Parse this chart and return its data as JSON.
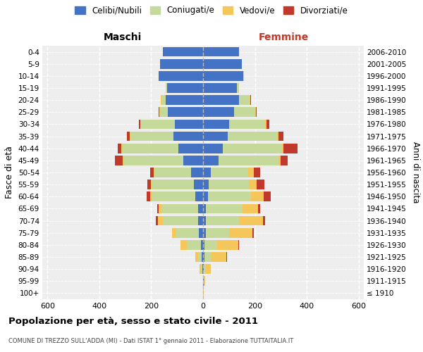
{
  "age_groups": [
    "100+",
    "95-99",
    "90-94",
    "85-89",
    "80-84",
    "75-79",
    "70-74",
    "65-69",
    "60-64",
    "55-59",
    "50-54",
    "45-49",
    "40-44",
    "35-39",
    "30-34",
    "25-29",
    "20-24",
    "15-19",
    "10-14",
    "5-9",
    "0-4"
  ],
  "birth_years": [
    "≤ 1910",
    "1911-1915",
    "1916-1920",
    "1921-1925",
    "1926-1930",
    "1931-1935",
    "1936-1940",
    "1941-1945",
    "1946-1950",
    "1951-1955",
    "1956-1960",
    "1961-1965",
    "1966-1970",
    "1971-1975",
    "1976-1980",
    "1981-1985",
    "1986-1990",
    "1991-1995",
    "1996-2000",
    "2001-2005",
    "2006-2010"
  ],
  "maschi": {
    "celibi": [
      1,
      1,
      3,
      5,
      8,
      15,
      20,
      20,
      30,
      35,
      45,
      75,
      95,
      115,
      110,
      135,
      145,
      140,
      170,
      165,
      155
    ],
    "coniugati": [
      0,
      0,
      5,
      15,
      55,
      90,
      135,
      140,
      165,
      160,
      140,
      230,
      215,
      165,
      130,
      30,
      15,
      5,
      2,
      0,
      0
    ],
    "vedovi": [
      0,
      0,
      5,
      10,
      25,
      15,
      20,
      10,
      8,
      5,
      5,
      5,
      5,
      3,
      3,
      3,
      2,
      0,
      0,
      0,
      0
    ],
    "divorziati": [
      0,
      0,
      0,
      0,
      0,
      0,
      8,
      8,
      15,
      15,
      15,
      30,
      15,
      10,
      5,
      3,
      2,
      0,
      0,
      0,
      0
    ]
  },
  "femmine": {
    "nubili": [
      1,
      2,
      3,
      5,
      5,
      10,
      10,
      12,
      20,
      22,
      30,
      60,
      75,
      95,
      100,
      120,
      140,
      130,
      155,
      150,
      140
    ],
    "coniugate": [
      0,
      2,
      8,
      25,
      50,
      90,
      130,
      140,
      165,
      155,
      145,
      230,
      230,
      190,
      140,
      80,
      40,
      10,
      3,
      0,
      0
    ],
    "vedove": [
      2,
      5,
      20,
      60,
      80,
      90,
      90,
      60,
      50,
      30,
      20,
      10,
      5,
      5,
      5,
      3,
      2,
      0,
      0,
      0,
      0
    ],
    "divorziate": [
      0,
      0,
      0,
      2,
      5,
      5,
      10,
      8,
      25,
      30,
      25,
      25,
      55,
      20,
      10,
      3,
      2,
      0,
      0,
      0,
      0
    ]
  },
  "colors": {
    "celibi": "#4472c4",
    "coniugati": "#c5d99a",
    "vedovi": "#f5c75a",
    "divorziati": "#c0392b"
  },
  "xlim": 620,
  "title": "Popolazione per età, sesso e stato civile - 2011",
  "subtitle": "COMUNE DI TREZZO SULL'ADDA (MI) - Dati ISTAT 1° gennaio 2011 - Elaborazione TUTTAITALIA.IT",
  "ylabel_left": "Fasce di età",
  "ylabel_right": "Anni di nascita",
  "legend_labels": [
    "Celibi/Nubili",
    "Coniugati/e",
    "Vedovi/e",
    "Divorziati/e"
  ]
}
